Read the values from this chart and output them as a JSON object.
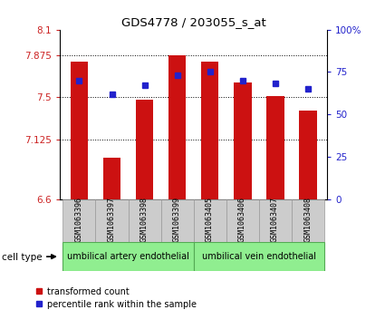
{
  "title": "GDS4778 / 203055_s_at",
  "samples": [
    "GSM1063396",
    "GSM1063397",
    "GSM1063398",
    "GSM1063399",
    "GSM1063405",
    "GSM1063406",
    "GSM1063407",
    "GSM1063408"
  ],
  "red_values": [
    7.82,
    6.97,
    7.48,
    7.87,
    7.82,
    7.63,
    7.51,
    7.38
  ],
  "blue_percentiles": [
    70,
    62,
    67,
    73,
    75,
    70,
    68,
    65
  ],
  "ylim_left": [
    6.6,
    8.1
  ],
  "ylim_right": [
    0,
    100
  ],
  "yticks_left": [
    6.6,
    7.125,
    7.5,
    7.875,
    8.1
  ],
  "ytick_labels_left": [
    "6.6",
    "7.125",
    "7.5",
    "7.875",
    "8.1"
  ],
  "yticks_right": [
    0,
    25,
    50,
    75,
    100
  ],
  "ytick_labels_right": [
    "0",
    "25",
    "50",
    "75",
    "100%"
  ],
  "hlines": [
    7.125,
    7.5,
    7.875
  ],
  "cell_type_groups": [
    {
      "label": "umbilical artery endothelial",
      "indices": [
        0,
        1,
        2,
        3
      ]
    },
    {
      "label": "umbilical vein endothelial",
      "indices": [
        4,
        5,
        6,
        7
      ]
    }
  ],
  "cell_type_label": "cell type",
  "bar_color": "#cc1111",
  "dot_color": "#2222cc",
  "bar_width": 0.55,
  "tick_label_color_left": "#cc2222",
  "tick_label_color_right": "#2222cc",
  "gray_cell_color": "#cccccc",
  "gray_cell_edge": "#999999",
  "green_cell_color": "#90ee90",
  "green_cell_edge": "#55aa55",
  "legend_items": [
    {
      "label": "transformed count",
      "color": "#cc1111"
    },
    {
      "label": "percentile rank within the sample",
      "color": "#2222cc"
    }
  ]
}
